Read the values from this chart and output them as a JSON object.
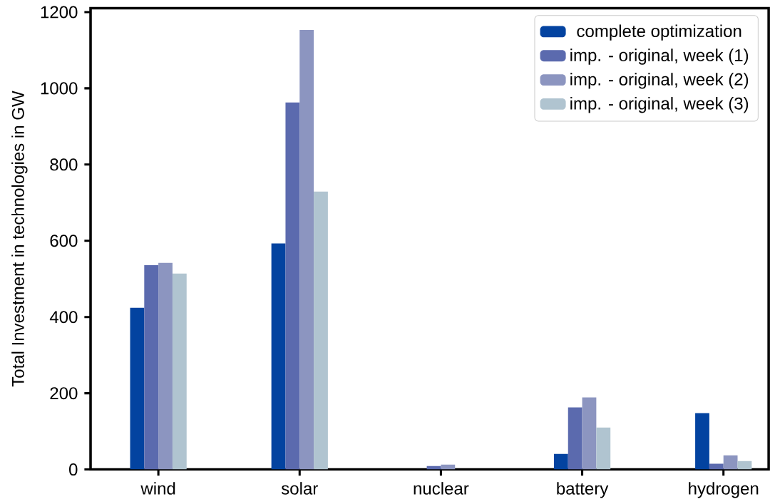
{
  "chart_data": {
    "type": "bar",
    "ylabel": "Total Investment in technologies in GW",
    "categories": [
      "wind",
      "solar",
      "nuclear",
      "battery",
      "hydrogen"
    ],
    "series": [
      {
        "name": "complete optimization",
        "color": "#0343a0",
        "values": [
          424,
          593,
          0,
          41,
          148
        ]
      },
      {
        "name": "imp. - original, week (1)",
        "color": "#5b6aae",
        "values": [
          536,
          963,
          9,
          163,
          15
        ]
      },
      {
        "name": "imp. - original, week (2)",
        "color": "#8c95c0",
        "values": [
          542,
          1153,
          13,
          189,
          37
        ]
      },
      {
        "name": "imp. - original, week (3)",
        "color": "#b0c4d0",
        "values": [
          514,
          729,
          0,
          110,
          22
        ]
      }
    ],
    "ylim": [
      0,
      1210
    ],
    "yticks": [
      0,
      200,
      400,
      600,
      800,
      1000,
      1200
    ],
    "grid": false,
    "legend": "top right"
  }
}
